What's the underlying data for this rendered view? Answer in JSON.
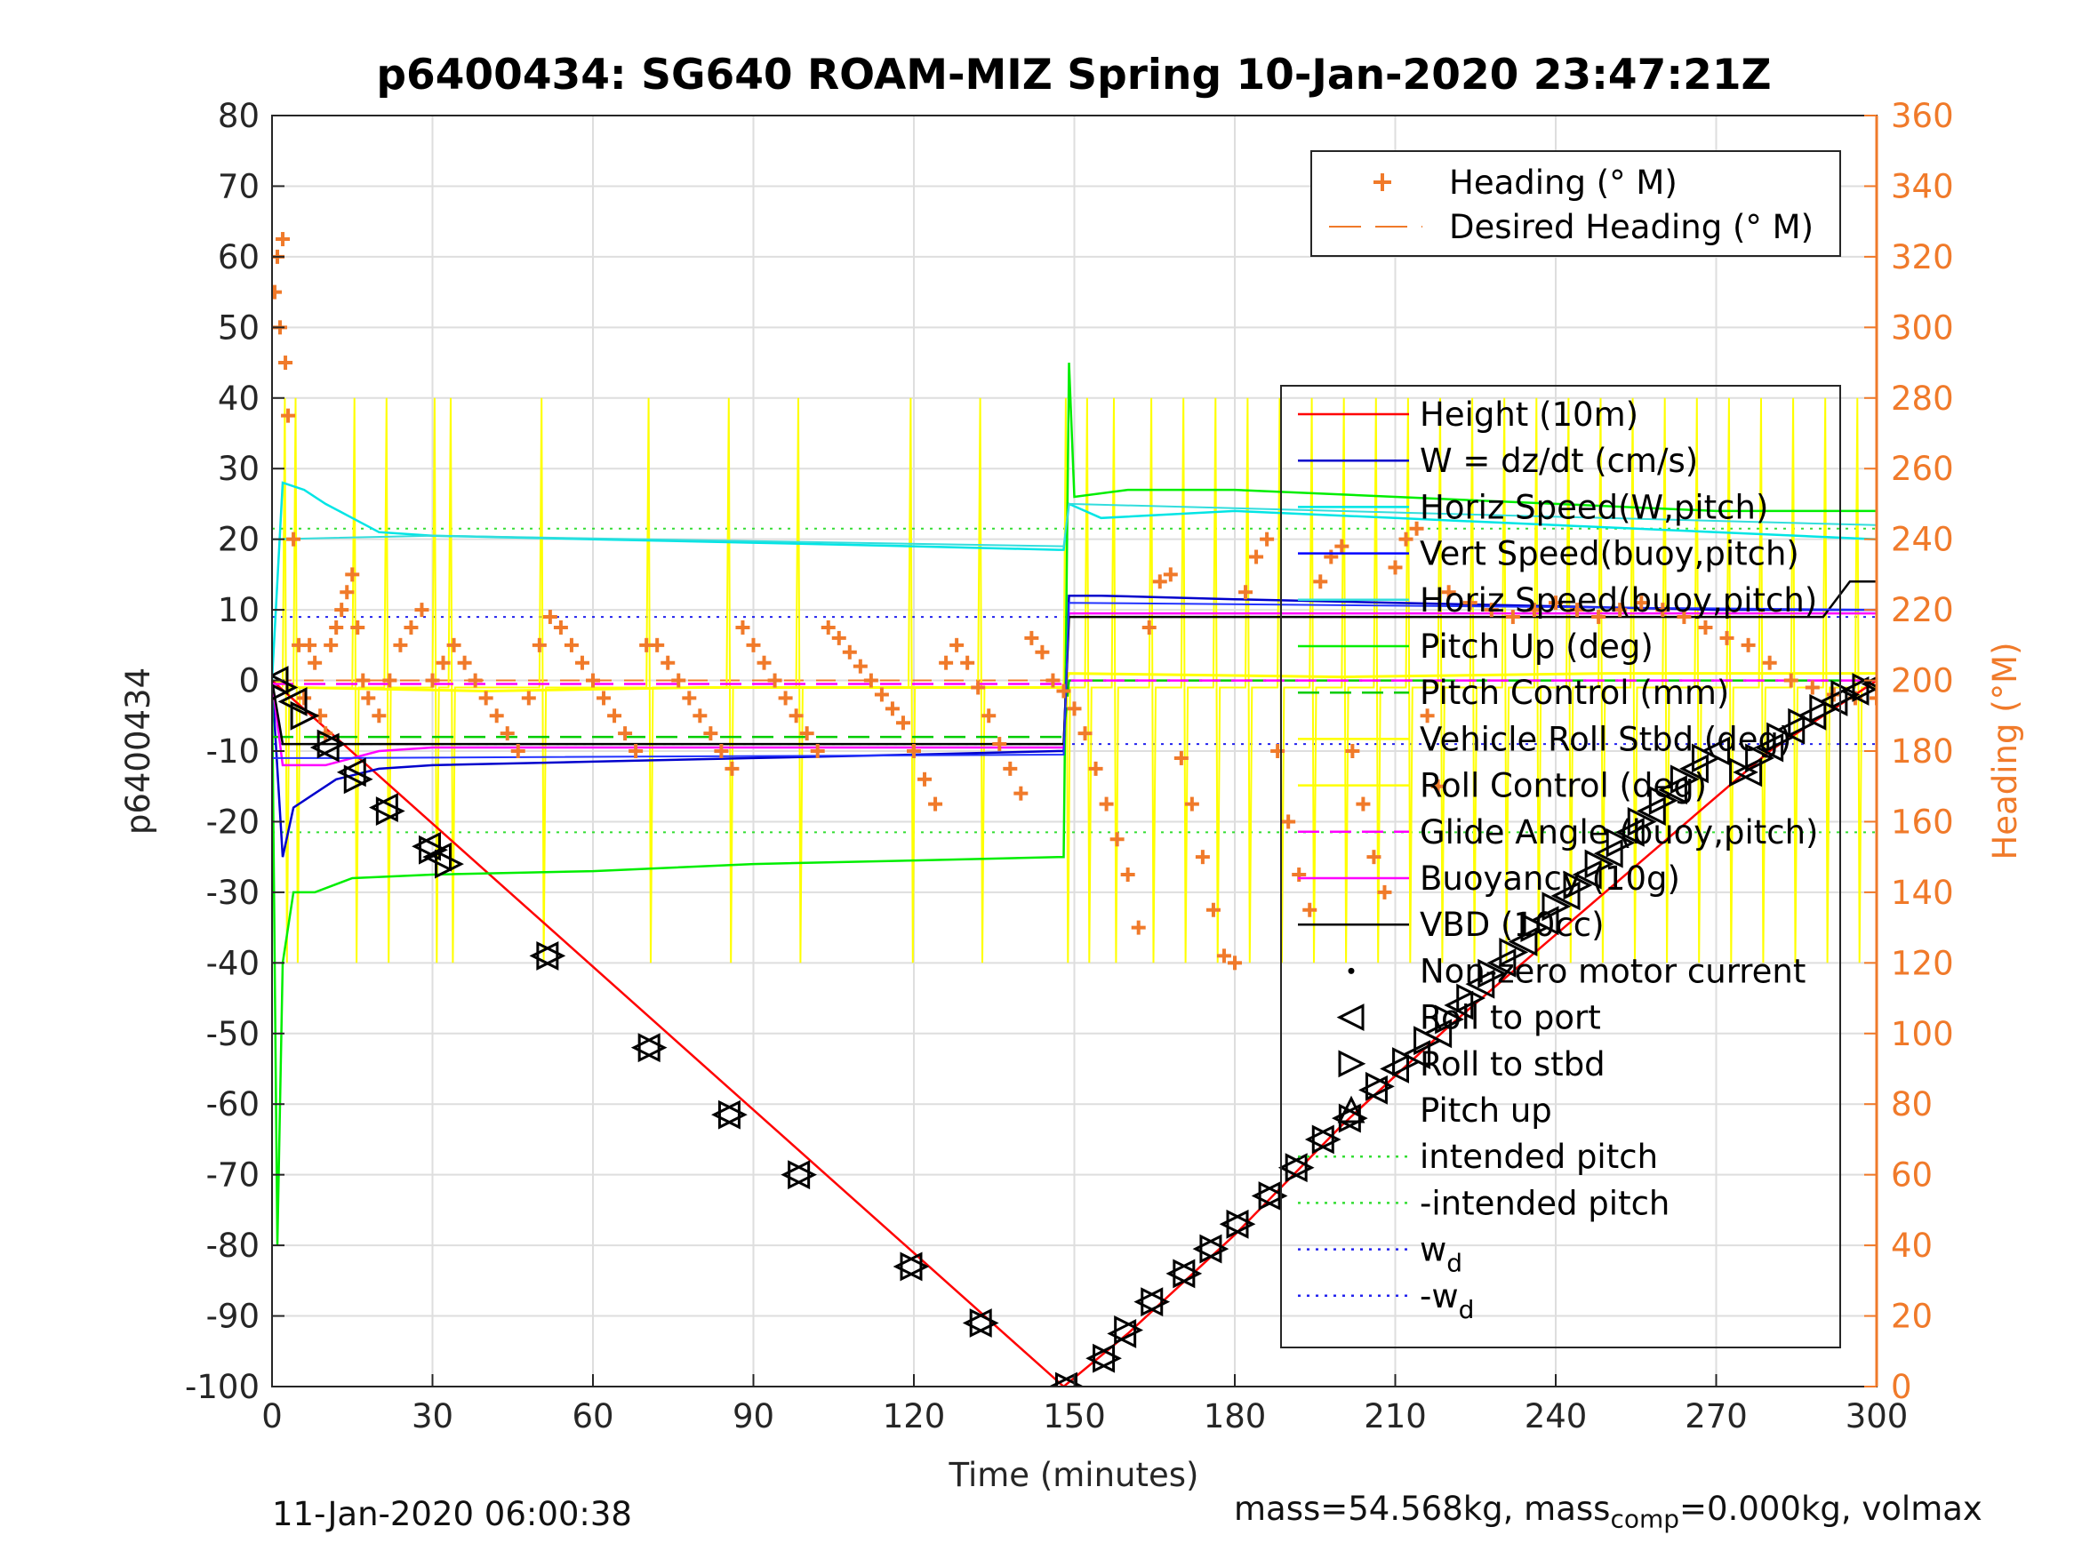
{
  "chart_data": {
    "type": "line",
    "title": "p6400434: SG640 ROAM-MIZ Spring 10-Jan-2020 23:47:21Z",
    "xlabel": "Time (minutes)",
    "ylabel": "p6400434",
    "y2label": "Heading (°M)",
    "xlim": [
      0,
      300
    ],
    "ylim": [
      -100,
      80
    ],
    "y2lim": [
      0,
      360
    ],
    "xticks": [
      0,
      30,
      60,
      90,
      120,
      150,
      180,
      210,
      240,
      270,
      300
    ],
    "yticks": [
      -100,
      -90,
      -80,
      -70,
      -60,
      -50,
      -40,
      -30,
      -20,
      -10,
      0,
      10,
      20,
      30,
      40,
      50,
      60,
      70,
      80
    ],
    "y2ticks": [
      0,
      20,
      40,
      60,
      80,
      100,
      120,
      140,
      160,
      180,
      200,
      220,
      240,
      260,
      280,
      300,
      320,
      340,
      360
    ],
    "grid": true,
    "colors": {
      "height": "#ff0000",
      "w": "#0000cc",
      "horiz_speed": "#00e5e5",
      "vert_speed": "#0000ff",
      "pitch_up": "#00ee00",
      "pitch_control": "#00cc00",
      "roll": "#ffff00",
      "glide": "#ff00ff",
      "vbd": "#000000",
      "heading": "#f07a2a"
    },
    "legend_top": {
      "position": "top-right",
      "entries": [
        "Heading (° M)",
        "Desired Heading (° M)"
      ]
    },
    "legend_main": {
      "position": "right",
      "entries": [
        "Height (10m)",
        "W = dz/dt (cm/s)",
        "Horiz Speed(W,pitch)",
        "Vert Speed(buoy,pitch)",
        "Horiz Speed(buoy,pitch)",
        "Pitch Up (deg)",
        "Pitch Control (mm)",
        "Vehicle Roll Stbd (deg)",
        "Roll Control (deg)",
        "Glide Angle (buoy,pitch)",
        "Buoyancy (10g)",
        "VBD (10cc)",
        "Non-zero motor current",
        "Roll to port",
        "Roll to stbd",
        "Pitch up",
        "intended pitch",
        "-intended pitch",
        "w_d",
        "-w_d"
      ]
    },
    "reference_lines": {
      "intended_pitch": 21.5,
      "w_d": 9
    },
    "series": [
      {
        "name": "Height (10m)",
        "x": [
          0,
          148,
          160,
          180,
          200,
          220,
          240,
          260,
          280,
          300
        ],
        "y": [
          0,
          -100,
          -92.5,
          -78.5,
          -63,
          -49,
          -36,
          -23,
          -10,
          0
        ]
      },
      {
        "name": "W = dz/dt (cm/s)",
        "x": [
          0,
          2,
          4,
          8,
          12,
          20,
          30,
          60,
          90,
          120,
          147,
          148,
          149,
          155,
          180,
          210,
          240,
          270,
          300
        ],
        "y": [
          0,
          -25,
          -18,
          -16,
          -14,
          -12.5,
          -12,
          -11.5,
          -11,
          -10.5,
          -10,
          -10,
          12,
          12,
          11.5,
          11,
          10.5,
          10,
          10
        ]
      },
      {
        "name": "Horiz Speed(W,pitch)",
        "x": [
          0,
          2,
          6,
          10,
          15,
          20,
          30,
          60,
          90,
          120,
          147,
          148,
          149,
          155,
          180,
          210,
          240,
          270,
          300
        ],
        "y": [
          0,
          28,
          27,
          25,
          23,
          21,
          20.5,
          20,
          19.5,
          19,
          18.5,
          18.5,
          25,
          23,
          24,
          23,
          22,
          21,
          20
        ]
      },
      {
        "name": "Pitch Up (deg)",
        "x": [
          0,
          1,
          2,
          4,
          8,
          15,
          30,
          60,
          90,
          120,
          147,
          148,
          149,
          150,
          160,
          180,
          210,
          240,
          270,
          300
        ],
        "y": [
          0,
          -80,
          -40,
          -30,
          -30,
          -28,
          -27.5,
          -27,
          -26,
          -25.5,
          -25,
          -25,
          45,
          26,
          27,
          27,
          26,
          25,
          24,
          24
        ]
      },
      {
        "name": "Pitch Control (mm)",
        "x": [
          0,
          2,
          10,
          60,
          120,
          148,
          149,
          300
        ],
        "y": [
          -8,
          -8,
          -8,
          -8,
          -8,
          -8,
          0,
          0
        ]
      },
      {
        "name": "Buoyancy (10g)",
        "x": [
          0,
          2,
          10,
          20,
          30,
          148,
          149,
          300
        ],
        "y": [
          0,
          -12,
          -12,
          -10,
          -9.5,
          -9.5,
          9.5,
          9.5
        ]
      },
      {
        "name": "VBD (10cc)",
        "x": [
          0,
          2,
          10,
          148,
          149,
          290,
          295,
          300
        ],
        "y": [
          0,
          -9,
          -9,
          -9,
          9,
          9,
          14,
          14
        ]
      },
      {
        "name": "Glide Angle (buoy,pitch)",
        "x": [
          0,
          148,
          149,
          300
        ],
        "y": [
          -0.5,
          -0.5,
          0,
          0
        ]
      }
    ],
    "heading": {
      "name": "Heading (° M)",
      "desired": 200,
      "points": [
        [
          0.5,
          310
        ],
        [
          1,
          320
        ],
        [
          1.5,
          300
        ],
        [
          2,
          325
        ],
        [
          2.5,
          290
        ],
        [
          3,
          275
        ],
        [
          4,
          240
        ],
        [
          5,
          210
        ],
        [
          6,
          195
        ],
        [
          7,
          210
        ],
        [
          8,
          205
        ],
        [
          9,
          190
        ],
        [
          10,
          185
        ],
        [
          11,
          210
        ],
        [
          12,
          215
        ],
        [
          13,
          220
        ],
        [
          14,
          225
        ],
        [
          15,
          230
        ],
        [
          16,
          215
        ],
        [
          17,
          200
        ],
        [
          18,
          195
        ],
        [
          20,
          190
        ],
        [
          22,
          200
        ],
        [
          24,
          210
        ],
        [
          26,
          215
        ],
        [
          28,
          220
        ],
        [
          30,
          200
        ],
        [
          32,
          205
        ],
        [
          34,
          210
        ],
        [
          36,
          205
        ],
        [
          38,
          200
        ],
        [
          40,
          195
        ],
        [
          42,
          190
        ],
        [
          44,
          185
        ],
        [
          46,
          180
        ],
        [
          48,
          195
        ],
        [
          50,
          210
        ],
        [
          52,
          218
        ],
        [
          54,
          215
        ],
        [
          56,
          210
        ],
        [
          58,
          205
        ],
        [
          60,
          200
        ],
        [
          62,
          195
        ],
        [
          64,
          190
        ],
        [
          66,
          185
        ],
        [
          68,
          180
        ],
        [
          70,
          210
        ],
        [
          72,
          210
        ],
        [
          74,
          205
        ],
        [
          76,
          200
        ],
        [
          78,
          195
        ],
        [
          80,
          190
        ],
        [
          82,
          185
        ],
        [
          84,
          180
        ],
        [
          86,
          175
        ],
        [
          88,
          215
        ],
        [
          90,
          210
        ],
        [
          92,
          205
        ],
        [
          94,
          200
        ],
        [
          96,
          195
        ],
        [
          98,
          190
        ],
        [
          100,
          185
        ],
        [
          102,
          180
        ],
        [
          104,
          215
        ],
        [
          106,
          212
        ],
        [
          108,
          208
        ],
        [
          110,
          204
        ],
        [
          112,
          200
        ],
        [
          114,
          196
        ],
        [
          116,
          192
        ],
        [
          118,
          188
        ],
        [
          120,
          180
        ],
        [
          122,
          172
        ],
        [
          124,
          165
        ],
        [
          126,
          205
        ],
        [
          128,
          210
        ],
        [
          130,
          205
        ],
        [
          132,
          198
        ],
        [
          134,
          190
        ],
        [
          136,
          182
        ],
        [
          138,
          175
        ],
        [
          140,
          168
        ],
        [
          142,
          212
        ],
        [
          144,
          208
        ],
        [
          146,
          200
        ],
        [
          148,
          197
        ],
        [
          150,
          192
        ],
        [
          152,
          185
        ],
        [
          154,
          175
        ],
        [
          156,
          165
        ],
        [
          158,
          155
        ],
        [
          160,
          145
        ],
        [
          162,
          130
        ],
        [
          164,
          215
        ],
        [
          166,
          228
        ],
        [
          168,
          230
        ],
        [
          170,
          178
        ],
        [
          172,
          165
        ],
        [
          174,
          150
        ],
        [
          176,
          135
        ],
        [
          178,
          122
        ],
        [
          180,
          120
        ],
        [
          182,
          225
        ],
        [
          184,
          235
        ],
        [
          186,
          240
        ],
        [
          188,
          180
        ],
        [
          190,
          160
        ],
        [
          192,
          145
        ],
        [
          194,
          135
        ],
        [
          196,
          228
        ],
        [
          198,
          235
        ],
        [
          200,
          238
        ],
        [
          202,
          180
        ],
        [
          204,
          165
        ],
        [
          206,
          150
        ],
        [
          208,
          140
        ],
        [
          210,
          232
        ],
        [
          212,
          240
        ],
        [
          214,
          243
        ],
        [
          216,
          190
        ],
        [
          218,
          170
        ],
        [
          220,
          225
        ],
        [
          224,
          222
        ],
        [
          228,
          220
        ],
        [
          232,
          218
        ],
        [
          236,
          220
        ],
        [
          240,
          222
        ],
        [
          244,
          220
        ],
        [
          248,
          218
        ],
        [
          252,
          220
        ],
        [
          256,
          222
        ],
        [
          260,
          220
        ],
        [
          264,
          218
        ],
        [
          268,
          215
        ],
        [
          272,
          212
        ],
        [
          276,
          210
        ],
        [
          280,
          205
        ],
        [
          284,
          200
        ],
        [
          288,
          198
        ],
        [
          292,
          196
        ],
        [
          296,
          195
        ],
        [
          300,
          195
        ]
      ]
    },
    "markers": {
      "roll_to_port_and_stbd": [
        [
          0.5,
          0
        ],
        [
          2,
          -1
        ],
        [
          4,
          -3
        ],
        [
          6,
          -5
        ],
        [
          10,
          -9.5
        ],
        [
          11,
          -9
        ],
        [
          15,
          -13
        ],
        [
          16,
          -14
        ],
        [
          21,
          -18
        ],
        [
          22,
          -18.5
        ],
        [
          29,
          -23.5
        ],
        [
          30,
          -24
        ],
        [
          31,
          -25
        ],
        [
          33,
          -26
        ],
        [
          51,
          -39
        ],
        [
          52,
          -39
        ],
        [
          70,
          -52
        ],
        [
          71,
          -52
        ],
        [
          85,
          -61.5
        ],
        [
          86,
          -61.5
        ],
        [
          98,
          -70
        ],
        [
          99,
          -70
        ],
        [
          119,
          -83
        ],
        [
          120,
          -83
        ],
        [
          132,
          -91
        ],
        [
          133,
          -91
        ],
        [
          148,
          -100
        ],
        [
          149,
          -100
        ],
        [
          155,
          -96
        ],
        [
          156,
          -96
        ],
        [
          159,
          -92.5
        ],
        [
          160,
          -92
        ],
        [
          164,
          -88
        ],
        [
          165,
          -88
        ],
        [
          170,
          -84
        ],
        [
          171,
          -84
        ],
        [
          175,
          -80.5
        ],
        [
          176,
          -80.5
        ],
        [
          180,
          -77
        ],
        [
          181,
          -77
        ],
        [
          186,
          -73
        ],
        [
          187,
          -73
        ],
        [
          191,
          -69
        ],
        [
          192,
          -69
        ],
        [
          196,
          -65
        ],
        [
          197,
          -65
        ],
        [
          201,
          -62
        ],
        [
          202,
          -62
        ],
        [
          206,
          -58
        ],
        [
          207,
          -57.5
        ],
        [
          210,
          -55
        ],
        [
          212,
          -54
        ],
        [
          214,
          -53
        ],
        [
          216,
          -51
        ],
        [
          218,
          -50
        ],
        [
          220,
          -48
        ],
        [
          222,
          -46
        ],
        [
          224,
          -45
        ],
        [
          226,
          -43
        ],
        [
          228,
          -41.5
        ],
        [
          230,
          -40
        ],
        [
          232,
          -38.5
        ],
        [
          234,
          -37
        ],
        [
          236,
          -35
        ],
        [
          238,
          -34
        ],
        [
          240,
          -32
        ],
        [
          242,
          -30.5
        ],
        [
          244,
          -29
        ],
        [
          246,
          -27.5
        ],
        [
          248,
          -26
        ],
        [
          250,
          -24.5
        ],
        [
          252,
          -23
        ],
        [
          254,
          -21.5
        ],
        [
          256,
          -20
        ],
        [
          258,
          -18.5
        ],
        [
          260,
          -17
        ],
        [
          262,
          -15.5
        ],
        [
          264,
          -14
        ],
        [
          266,
          -12.5
        ],
        [
          268,
          -11
        ],
        [
          270,
          -10
        ],
        [
          275,
          -13
        ],
        [
          276,
          -13
        ],
        [
          278,
          -11
        ],
        [
          280,
          -9.5
        ],
        [
          282,
          -8
        ],
        [
          284,
          -7
        ],
        [
          286,
          -6
        ],
        [
          288,
          -5
        ],
        [
          290,
          -4
        ],
        [
          292,
          -3
        ],
        [
          294,
          -2
        ],
        [
          296,
          -1.5
        ],
        [
          298,
          -1
        ],
        [
          300,
          -0.5
        ]
      ]
    }
  },
  "footer": {
    "timestamp": "11-Jan-2020 06:00:38",
    "mass_text_a": "mass=54.568kg, mass",
    "mass_sub": "comp",
    "mass_text_b": "=0.000kg, volmax"
  }
}
